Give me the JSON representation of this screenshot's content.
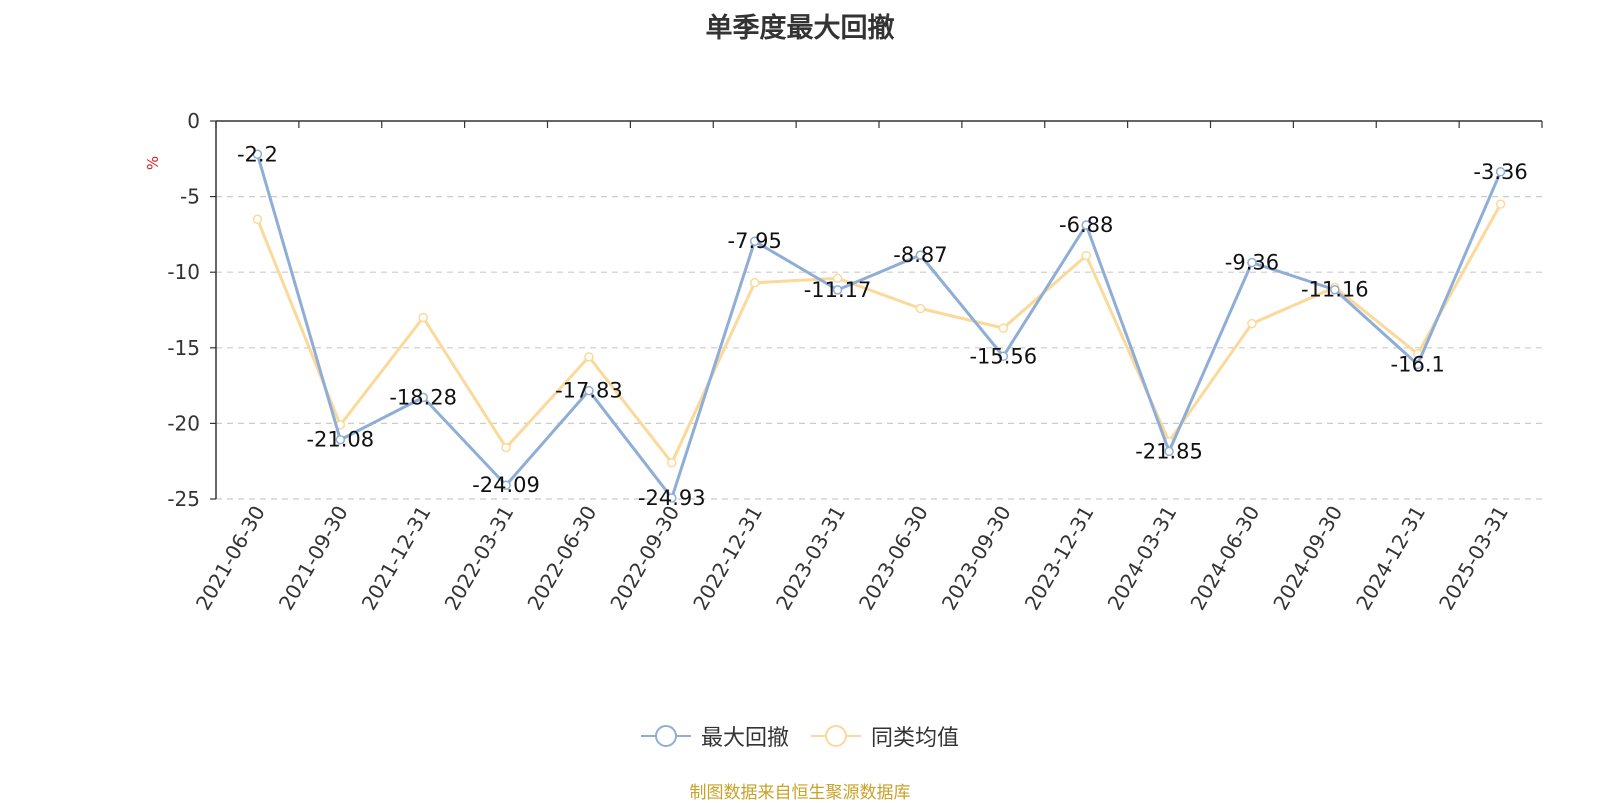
{
  "chart_data": {
    "type": "line",
    "title": "单季度最大回撤",
    "ylabel": "%",
    "ylim": [
      -25,
      0
    ],
    "yticks": [
      0,
      -5,
      -10,
      -15,
      -20,
      -25
    ],
    "grid": true,
    "legend_position": "bottom-center",
    "categories": [
      "2021-06-30",
      "2021-09-30",
      "2021-12-31",
      "2022-03-31",
      "2022-06-30",
      "2022-09-30",
      "2022-12-31",
      "2023-03-31",
      "2023-06-30",
      "2023-09-30",
      "2023-12-31",
      "2024-03-31",
      "2024-06-30",
      "2024-09-30",
      "2024-12-31",
      "2025-03-31"
    ],
    "series": [
      {
        "name": "最大回撤",
        "color": "#8eaed8",
        "show_labels": true,
        "values": [
          -2.2,
          -21.08,
          -18.28,
          -24.09,
          -17.83,
          -24.93,
          -7.95,
          -11.17,
          -8.87,
          -15.56,
          -6.88,
          -21.85,
          -9.36,
          -11.16,
          -16.1,
          -3.36
        ]
      },
      {
        "name": "同类均值",
        "color": "#fbd99a",
        "show_labels": false,
        "values": [
          -6.5,
          -20.1,
          -13.0,
          -21.6,
          -15.6,
          -22.6,
          -10.7,
          -10.4,
          -12.4,
          -13.7,
          -8.9,
          -21.2,
          -13.4,
          -11.0,
          -15.4,
          -5.5
        ]
      }
    ],
    "source_note": "制图数据来自恒生聚源数据库"
  }
}
